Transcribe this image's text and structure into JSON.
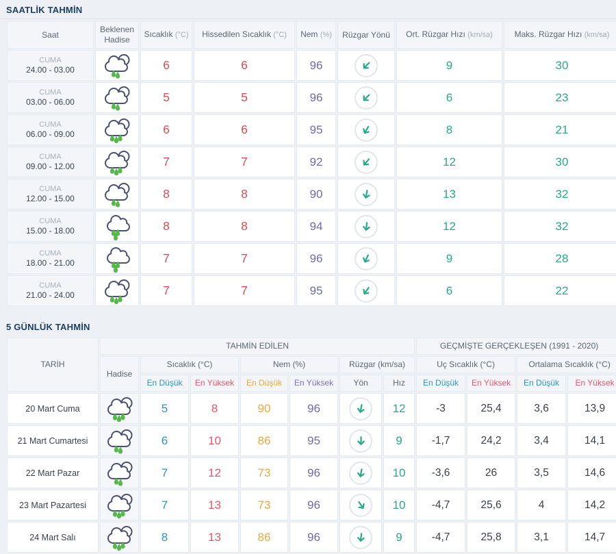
{
  "colors": {
    "page_bg": "#edf0f5",
    "title_text": "#1d3f63",
    "temp_red": "#e14b55",
    "min_blue": "#2e94bd",
    "max_red": "#e8566a",
    "humidity_purple": "#6f6aae",
    "humidity_min_orange": "#eaa83e",
    "wind_teal": "#27a98b",
    "drop_green": "#54b84a",
    "cloud_outline": "#4a5270"
  },
  "hourly": {
    "title": "SAATLİK TAHMİN",
    "columns": {
      "saat": "Saat",
      "hadise": "Beklenen Hadise",
      "temp": {
        "label": "Sıcaklık",
        "unit": "(°C)"
      },
      "feels": {
        "label": "Hissedilen Sıcaklık",
        "unit": "(°C)"
      },
      "humidity": {
        "label": "Nem",
        "unit": "(%)"
      },
      "wind_dir": "Rüzgar Yönü",
      "wind_avg": {
        "label": "Ort. Rüzgar Hızı",
        "unit": "(km/sa)"
      },
      "wind_max": {
        "label": "Maks. Rüzgar Hızı",
        "unit": "(km/sa)"
      }
    },
    "rows": [
      {
        "day": "CUMA",
        "time": "24.00 - 03.00",
        "icon": {
          "cloud": "double",
          "drops": 2
        },
        "temp": "6",
        "feels": "6",
        "humidity": "96",
        "wind_deg": 225,
        "wind_avg": "9",
        "wind_max": "30"
      },
      {
        "day": "CUMA",
        "time": "03.00 - 06.00",
        "icon": {
          "cloud": "double",
          "drops": 2
        },
        "temp": "5",
        "feels": "5",
        "humidity": "96",
        "wind_deg": 225,
        "wind_avg": "6",
        "wind_max": "23"
      },
      {
        "day": "CUMA",
        "time": "06.00 - 09.00",
        "icon": {
          "cloud": "double",
          "drops": 3
        },
        "temp": "6",
        "feels": "6",
        "humidity": "95",
        "wind_deg": 210,
        "wind_avg": "8",
        "wind_max": "21"
      },
      {
        "day": "CUMA",
        "time": "09.00 - 12.00",
        "icon": {
          "cloud": "double",
          "drops": 3
        },
        "temp": "7",
        "feels": "7",
        "humidity": "92",
        "wind_deg": 220,
        "wind_avg": "12",
        "wind_max": "30"
      },
      {
        "day": "CUMA",
        "time": "12.00 - 15.00",
        "icon": {
          "cloud": "double",
          "drops": 2
        },
        "temp": "8",
        "feels": "8",
        "humidity": "90",
        "wind_deg": 190,
        "wind_avg": "13",
        "wind_max": "32"
      },
      {
        "day": "CUMA",
        "time": "15.00 - 18.00",
        "icon": {
          "cloud": "single",
          "drops": 3
        },
        "temp": "8",
        "feels": "8",
        "humidity": "94",
        "wind_deg": 185,
        "wind_avg": "12",
        "wind_max": "32"
      },
      {
        "day": "CUMA",
        "time": "18.00 - 21.00",
        "icon": {
          "cloud": "single",
          "drops": 3
        },
        "temp": "7",
        "feels": "7",
        "humidity": "96",
        "wind_deg": 205,
        "wind_avg": "9",
        "wind_max": "28"
      },
      {
        "day": "CUMA",
        "time": "21.00 - 24.00",
        "icon": {
          "cloud": "double",
          "drops": 3
        },
        "temp": "7",
        "feels": "7",
        "humidity": "95",
        "wind_deg": 215,
        "wind_avg": "6",
        "wind_max": "22"
      }
    ]
  },
  "daily": {
    "title": "5 GÜNLÜK TAHMİN",
    "headers": {
      "date": "TARİH",
      "predicted": "TAHMİN EDİLEN",
      "historical": "GEÇMİŞTE GERÇEKLEŞEN (1991 - 2020)",
      "event": "Hadise",
      "temp": "Sıcaklık (°C)",
      "humidity": "Nem (%)",
      "wind": "Rüzgar (km/sa)",
      "extreme_temp": "Uç Sıcaklık (°C)",
      "avg_temp": "Ortalama Sıcaklık (°C)",
      "min": "En Düşük",
      "max": "En Yüksek",
      "dir": "Yön",
      "speed": "Hız"
    },
    "rows": [
      {
        "date": "20 Mart Cuma",
        "icon": {
          "cloud": "double",
          "drops": 3
        },
        "temp_min": "5",
        "temp_max": "8",
        "hum_min": "90",
        "hum_max": "96",
        "wind_deg": 190,
        "wind_speed": "12",
        "ext_min": "-3",
        "ext_max": "25,4",
        "avg_min": "3,6",
        "avg_max": "13,9"
      },
      {
        "date": "21 Mart Cumartesi",
        "icon": {
          "cloud": "double",
          "drops": 2
        },
        "temp_min": "6",
        "temp_max": "10",
        "hum_min": "86",
        "hum_max": "95",
        "wind_deg": 180,
        "temp_unit": "",
        "wind_speed": "9",
        "ext_min": "-1,7",
        "ext_max": "24,2",
        "avg_min": "3,4",
        "avg_max": "14,1"
      },
      {
        "date": "22 Mart Pazar",
        "icon": {
          "cloud": "double",
          "drops": 2
        },
        "temp_min": "7",
        "temp_max": "12",
        "hum_min": "73",
        "hum_max": "96",
        "wind_deg": 190,
        "wind_speed": "10",
        "ext_min": "-3,6",
        "ext_max": "26",
        "avg_min": "3,5",
        "avg_max": "14,6"
      },
      {
        "date": "23 Mart Pazartesi",
        "icon": {
          "cloud": "double",
          "drops": 3
        },
        "temp_min": "7",
        "temp_max": "13",
        "hum_min": "73",
        "hum_max": "96",
        "wind_deg": 145,
        "wind_speed": "10",
        "ext_min": "-4,7",
        "ext_max": "25,6",
        "avg_min": "4",
        "avg_max": "14,2"
      },
      {
        "date": "24 Mart Salı",
        "icon": {
          "cloud": "double",
          "drops": 3
        },
        "temp_min": "8",
        "temp_max": "13",
        "hum_min": "86",
        "hum_max": "96",
        "wind_deg": 185,
        "wind_speed": "9",
        "ext_min": "-4,7",
        "ext_max": "25,8",
        "avg_min": "3,1",
        "avg_max": "14,7"
      }
    ]
  }
}
